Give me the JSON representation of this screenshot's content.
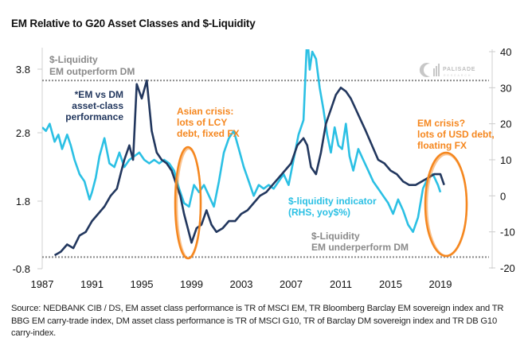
{
  "title": "EM Relative to G20 Asset Classes and $-Liquidity",
  "source_note": "Source: NEDBANK CIB / DS, EM asset class performance is TR of MSCI EM, TR Bloomberg Barclay EM sovereign index and TR BBG EM carry-trade index, DM asset class performance is TR of MSCI G10, TR of Barclay DM sovereign index and TR DB G10 carry-index.",
  "logo": {
    "name": "PALISADE",
    "sub": "RESEARCH"
  },
  "colors": {
    "em_vs_dm": "#22375e",
    "liquidity": "#2bc0e4",
    "annotation_orange": "#f5871f",
    "annotation_gray": "#8a8a8a",
    "axis": "#cccccc",
    "dotted": "#888888"
  },
  "chart_data": {
    "type": "line",
    "title": "EM Relative to G20 Asset Classes and $-Liquidity",
    "x_ticks": [
      "1987",
      "1991",
      "1995",
      "1999",
      "2003",
      "2007",
      "2011",
      "2015",
      "2019"
    ],
    "xlim": [
      1987,
      2021
    ],
    "left_axis": {
      "ticks": [
        "3.8",
        "2.8",
        "1.8",
        "-0.8"
      ],
      "label": ""
    },
    "right_axis": {
      "ticks": [
        "40",
        "30",
        "20",
        "10",
        "0",
        "-10",
        "-20"
      ],
      "ylim": [
        -20,
        40
      ],
      "label": ""
    },
    "reference_lines": [
      {
        "label": "$-Liquidity EM outperform DM",
        "value_rhs": 32
      },
      {
        "label": "$-Liquidity EM underperform DM",
        "value_rhs": -17
      }
    ],
    "series": [
      {
        "name": "*EM vs DM asset-class performance",
        "axis": "left (plotted in RHS-equivalent units)",
        "x": [
          1988.0,
          1988.5,
          1989.0,
          1989.5,
          1990.0,
          1990.5,
          1991.0,
          1991.5,
          1992.0,
          1992.5,
          1993.0,
          1993.3,
          1993.6,
          1994.0,
          1994.3,
          1994.6,
          1995.0,
          1995.4,
          1995.8,
          1996.2,
          1996.6,
          1997.0,
          1997.4,
          1997.8,
          1998.1,
          1998.4,
          1998.7,
          1999.0,
          1999.4,
          1999.8,
          2000.2,
          2000.6,
          2001.0,
          2001.5,
          2002.0,
          2002.5,
          2003.0,
          2003.5,
          2004.0,
          2004.5,
          2005.0,
          2005.5,
          2006.0,
          2006.5,
          2007.0,
          2007.5,
          2008.0,
          2008.3,
          2008.6,
          2009.0,
          2009.4,
          2009.8,
          2010.2,
          2010.6,
          2011.0,
          2011.4,
          2011.8,
          2012.2,
          2012.6,
          2013.0,
          2013.5,
          2014.0,
          2014.5,
          2015.0,
          2015.5,
          2016.0,
          2016.5,
          2017.0,
          2017.5,
          2018.0,
          2018.5,
          2019.0,
          2019.3
        ],
        "values": [
          -16.5,
          -15.5,
          -13.5,
          -14.5,
          -11,
          -10,
          -7,
          -5,
          -3,
          0,
          2,
          6,
          10,
          14,
          10,
          31,
          27,
          32,
          18,
          12,
          10,
          9,
          7,
          3,
          0,
          -5,
          -9,
          -13,
          -9,
          -8,
          -4,
          -8,
          -10,
          -9,
          -7,
          -7,
          -5,
          -4,
          -2,
          0,
          1,
          3,
          5,
          7,
          9,
          14,
          16,
          14,
          8,
          6,
          12,
          20,
          24,
          28,
          30,
          29,
          27,
          24,
          21,
          18,
          14,
          10,
          9,
          7,
          6,
          4,
          3,
          3,
          4,
          5,
          6,
          6,
          3
        ]
      },
      {
        "name": "$-liquidity indicator (RHS, yoy$%)",
        "axis": "right",
        "x": [
          1987.0,
          1987.3,
          1987.6,
          1988.0,
          1988.3,
          1988.6,
          1989.0,
          1989.3,
          1989.6,
          1990.0,
          1990.4,
          1990.8,
          1991.0,
          1991.3,
          1991.6,
          1992.0,
          1992.4,
          1992.8,
          1993.2,
          1993.6,
          1994.0,
          1994.4,
          1994.8,
          1995.2,
          1995.6,
          1996.0,
          1996.4,
          1996.8,
          1997.2,
          1997.6,
          1998.0,
          1998.4,
          1998.8,
          1999.2,
          1999.6,
          2000.0,
          2000.4,
          2000.8,
          2001.2,
          2001.6,
          2002.0,
          2002.4,
          2002.8,
          2003.2,
          2003.6,
          2004.0,
          2004.4,
          2004.8,
          2005.2,
          2005.6,
          2006.0,
          2006.4,
          2006.8,
          2007.2,
          2007.6,
          2008.0,
          2008.3,
          2008.5,
          2008.7,
          2009.0,
          2009.3,
          2009.6,
          2009.9,
          2010.2,
          2010.5,
          2010.8,
          2011.1,
          2011.4,
          2011.7,
          2012.0,
          2012.4,
          2012.8,
          2013.2,
          2013.6,
          2014.0,
          2014.4,
          2014.8,
          2015.2,
          2015.6,
          2016.0,
          2016.4,
          2016.8,
          2017.2,
          2017.6,
          2018.0,
          2018.4,
          2018.8,
          2019.0
        ],
        "values": [
          19,
          18,
          20,
          15,
          17,
          13,
          17,
          14,
          10,
          6,
          4,
          -1,
          1,
          5,
          11,
          16,
          9,
          8,
          12,
          8,
          10,
          11,
          12,
          10,
          9,
          10,
          9,
          10,
          9,
          7,
          2,
          -2,
          -3,
          3,
          1,
          3,
          0,
          -3,
          4,
          12,
          16,
          18,
          13,
          8,
          4,
          0,
          3,
          2,
          3,
          2,
          4,
          6,
          3,
          10,
          17,
          21,
          45,
          35,
          40,
          38,
          30,
          24,
          17,
          12,
          19,
          14,
          13,
          20,
          11,
          7,
          13,
          10,
          7,
          4,
          2,
          0,
          -2,
          -5,
          -1,
          -4,
          -8,
          -10,
          -6,
          2,
          5,
          6,
          3,
          1
        ]
      }
    ],
    "annotations": [
      {
        "text": "$-Liquidity",
        "text2": "EM outperform DM",
        "color": "gray"
      },
      {
        "text": "*EM vs DM",
        "text2": "asset-class",
        "text3": "performance",
        "color": "navy"
      },
      {
        "text": "Asian crisis:",
        "text2": "lots of LCY",
        "text3": "debt, fixed FX",
        "color": "orange"
      },
      {
        "text": "EM crisis?",
        "text2": "lots of USD debt,",
        "text3": "floating FX",
        "color": "orange"
      },
      {
        "text": "$-liquidity indicator",
        "text2": "(RHS, yoy$%)",
        "color": "cyan"
      },
      {
        "text": "$-Liquidity",
        "text2": "EM underperform DM",
        "color": "gray"
      }
    ]
  }
}
